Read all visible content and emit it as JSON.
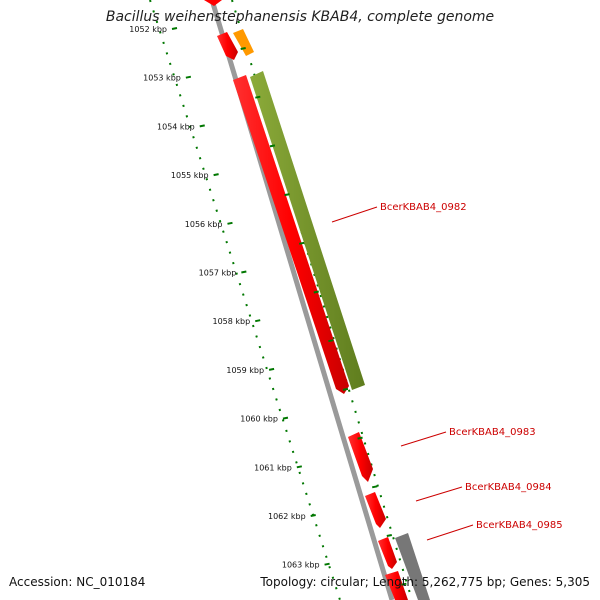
{
  "title": "Bacillus weihenstephanensis KBAB4, complete genome",
  "footer": {
    "accession": "Accession: NC_010184",
    "topology": "Topology: circular; Length: 5,262,775 bp; Genes: 5,305"
  },
  "ticks": [
    "1052 kbp",
    "1053 kbp",
    "1054 kbp",
    "1055 kbp",
    "1056 kbp",
    "1057 kbp",
    "1058 kbp",
    "1059 kbp",
    "1060 kbp",
    "1061 kbp",
    "1062 kbp",
    "1063 kbp"
  ],
  "gene_labels": [
    "BcerKBAB4_0982",
    "BcerKBAB4_0983",
    "BcerKBAB4_0984",
    "BcerKBAB4_0985"
  ],
  "colors": {
    "forward_gene": "#ff0000",
    "reverse_gene": "#ff0000",
    "olive_feature": "#7a9a2a",
    "orange_feature": "#ff9900",
    "gray_feature": "#777777",
    "backbone": "#999999",
    "tick_green": "#007700",
    "label_red": "#cc0000"
  }
}
